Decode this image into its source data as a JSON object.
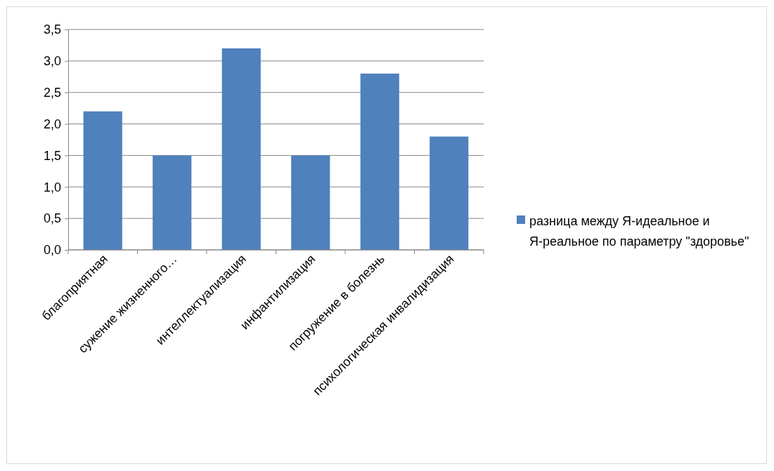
{
  "chart_data": {
    "type": "bar",
    "categories": [
      "благоприятная",
      "сужение жизненного…",
      "интеллектуализация",
      "инфантилизация",
      "погружение в болезнь",
      "психологическая инвалидизация"
    ],
    "series": [
      {
        "name": "разница между Я-идеальное и Я-реальное по параметру \"здоровье\"",
        "color": "#4f81bd",
        "values": [
          2.2,
          1.5,
          3.2,
          1.5,
          2.8,
          1.8
        ]
      }
    ],
    "ylim": [
      0,
      3.5
    ],
    "yticks": [
      {
        "value": 0,
        "label": "0,0"
      },
      {
        "value": 0.5,
        "label": "0,5"
      },
      {
        "value": 1,
        "label": "1,0"
      },
      {
        "value": 1.5,
        "label": "1,5"
      },
      {
        "value": 2,
        "label": "2,0"
      },
      {
        "value": 2.5,
        "label": "2,5"
      },
      {
        "value": 3,
        "label": "3,0"
      },
      {
        "value": 3.5,
        "label": "3,5"
      }
    ],
    "grid": "y",
    "legend": "right"
  }
}
